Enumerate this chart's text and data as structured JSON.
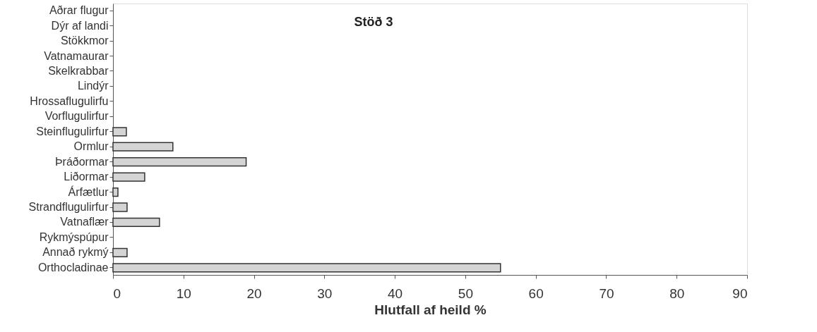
{
  "chart_data": {
    "type": "bar",
    "orientation": "horizontal",
    "title": "Stöð 3",
    "xlabel": "Hlutfall af heild %",
    "categories": [
      "Aðrar flugur",
      "Dýr af landi",
      "Stökkmor",
      "Vatnamaurar",
      "Skelkrabbar",
      "Lindýr",
      "Hrossaflugulirfu",
      "Vorflugulirfur",
      "Steinflugulirfur",
      "Ormlur",
      "Þráðormar",
      "Liðormar",
      "Árfætlur",
      "Strandflugulirfur",
      "Vatnaflær",
      "Rykmýspúpur",
      "Annað rykmý",
      "Orthocladinae"
    ],
    "values": [
      null,
      null,
      null,
      null,
      null,
      null,
      null,
      null,
      1.9,
      8.5,
      18.9,
      4.5,
      0.7,
      2,
      6.6,
      null,
      2,
      55
    ],
    "color": "#d4d4d4",
    "xlim": [
      0,
      90
    ],
    "xticks": [
      0,
      10,
      20,
      30,
      40,
      50,
      60,
      70,
      80,
      90
    ],
    "grid": false
  }
}
